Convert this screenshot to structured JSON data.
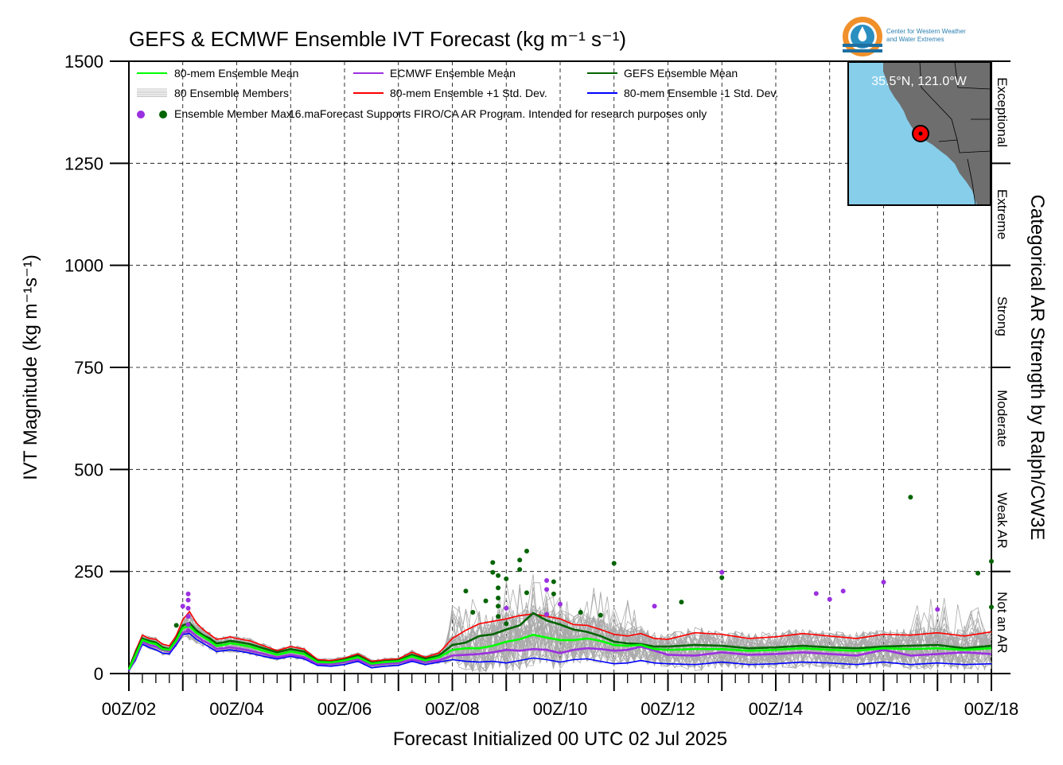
{
  "logo": {
    "line1": "Center for Western Weather",
    "line2": "and Water Extremes"
  },
  "inset": {
    "location": "35.5°N, 121.0°W",
    "ocean_color": "#87CEEB",
    "land_color": "#6E6E6E",
    "point_color": "#FF0000"
  },
  "colors": {
    "ens_mean": "#00FF00",
    "members": "#AAAAAA",
    "ecmwf_mean": "#9B30E0",
    "plus_std": "#FF0000",
    "gefs_mean": "#006400",
    "minus_std": "#0000FF"
  },
  "chart_data": {
    "type": "line",
    "title": "GEFS & ECMWF Ensemble IVT Forecast (kg m⁻¹ s⁻¹)",
    "xlabel": "Forecast Initialized 00 UTC 02 Jul 2025",
    "ylabel": "IVT Magnitude (kg m⁻¹s⁻¹)",
    "right_label": "Categorical AR Strength by Ralph/CW3E",
    "ylim": [
      0,
      1500
    ],
    "yticks": [
      0,
      250,
      500,
      750,
      1000,
      1250,
      1500
    ],
    "xlim": [
      "2025-07-02 00Z",
      "2025-07-18 00Z"
    ],
    "xtick_labels": [
      "00Z/02",
      "00Z/04",
      "00Z/06",
      "00Z/08",
      "00Z/10",
      "00Z/12",
      "00Z/14",
      "00Z/16",
      "00Z/18"
    ],
    "grid": true,
    "legend_placement": "top-left",
    "legend": [
      {
        "label": "80-mem Ensemble Mean",
        "color": "#00FF00"
      },
      {
        "label": "ECMWF Ensemble Mean",
        "color": "#9B30E0"
      },
      {
        "label": "GEFS Ensemble Mean",
        "color": "#006400"
      },
      {
        "label": "80 Ensemble Members",
        "color": "#AAAAAA"
      },
      {
        "label": "80-mem Ensemble +1 Std. Dev.",
        "color": "#FF0000"
      },
      {
        "label": "80-mem Ensemble -1 Std. Dev.",
        "color": "#0000FF"
      }
    ],
    "legend_dots_label": "Ensemble Member Max",
    "note": "16.maForecast Supports FIRO/CA AR Program. Intended for research purposes only",
    "categories": [
      {
        "label": "Not an AR",
        "from": 0,
        "to": 250
      },
      {
        "label": "Weak AR",
        "from": 250,
        "to": 500
      },
      {
        "label": "Moderate",
        "from": 500,
        "to": 750
      },
      {
        "label": "Strong",
        "from": 750,
        "to": 1000
      },
      {
        "label": "Extreme",
        "from": 1000,
        "to": 1250
      },
      {
        "label": "Exceptional",
        "from": 1250,
        "to": 1500
      }
    ],
    "x_units": "forecast day offset from 00Z/02",
    "series": [
      {
        "name": "80-mem Ensemble Mean",
        "color": "#00FF00",
        "x": [
          0,
          0.125,
          0.25,
          0.375,
          0.5,
          0.625,
          0.75,
          0.875,
          1.0,
          1.125,
          1.25,
          1.375,
          1.5,
          1.625,
          1.75,
          1.875,
          2.0,
          2.25,
          2.5,
          2.75,
          3.0,
          3.25,
          3.5,
          3.75,
          4.0,
          4.25,
          4.5,
          4.75,
          5.0,
          5.25,
          5.5,
          5.75,
          6.0,
          6.25,
          6.5,
          6.75,
          7.0,
          7.25,
          7.5,
          7.75,
          8.0,
          8.25,
          8.5,
          8.75,
          9.0,
          9.25,
          9.5,
          9.75,
          10.0,
          10.5,
          11.0,
          11.5,
          12.0,
          12.5,
          13.0,
          13.5,
          14.0,
          14.5,
          15.0,
          15.5,
          16.0,
          16.5,
          17.0,
          17.5,
          18.0
        ],
        "y": [
          10,
          45,
          82,
          76,
          72,
          60,
          58,
          80,
          112,
          116,
          100,
          90,
          80,
          68,
          70,
          74,
          72,
          66,
          56,
          46,
          54,
          48,
          28,
          27,
          32,
          40,
          24,
          28,
          30,
          42,
          32,
          40,
          58,
          62,
          62,
          68,
          78,
          84,
          95,
          88,
          82,
          82,
          86,
          80,
          70,
          68,
          70,
          60,
          58,
          60,
          60,
          56,
          58,
          62,
          58,
          56,
          62,
          60,
          62,
          58,
          62,
          58,
          64,
          66,
          72
        ]
      },
      {
        "name": "ECMWF Ensemble Mean",
        "color": "#9B30E0",
        "x": [
          0,
          0.125,
          0.25,
          0.375,
          0.5,
          0.625,
          0.75,
          0.875,
          1.0,
          1.125,
          1.25,
          1.375,
          1.5,
          1.625,
          1.75,
          1.875,
          2.0,
          2.25,
          2.5,
          2.75,
          3.0,
          3.25,
          3.5,
          3.75,
          4.0,
          4.25,
          4.5,
          4.75,
          5.0,
          5.25,
          5.5,
          5.75,
          6.0,
          6.25,
          6.5,
          6.75,
          7.0,
          7.25,
          7.5,
          7.75,
          8.0,
          8.25,
          8.5,
          8.75,
          9.0,
          9.25,
          9.5,
          9.75,
          10.0,
          10.5,
          11.0,
          11.5,
          12.0,
          12.5,
          13.0,
          13.5,
          14.0,
          14.5,
          15.0,
          15.5,
          16.0,
          16.5,
          17.0,
          17.5,
          18.0
        ],
        "y": [
          8,
          40,
          78,
          70,
          66,
          58,
          54,
          76,
          100,
          106,
          92,
          80,
          72,
          60,
          62,
          64,
          62,
          56,
          48,
          40,
          46,
          40,
          24,
          23,
          28,
          34,
          20,
          24,
          26,
          34,
          28,
          32,
          44,
          46,
          48,
          52,
          58,
          56,
          60,
          58,
          50,
          58,
          62,
          60,
          56,
          58,
          66,
          56,
          46,
          44,
          52,
          46,
          48,
          52,
          48,
          44,
          58,
          44,
          48,
          52,
          48,
          54,
          58,
          62,
          66
        ]
      },
      {
        "name": "GEFS Ensemble Mean",
        "color": "#006400",
        "x": [
          0,
          0.125,
          0.25,
          0.375,
          0.5,
          0.625,
          0.75,
          0.875,
          1.0,
          1.125,
          1.25,
          1.375,
          1.5,
          1.625,
          1.75,
          1.875,
          2.0,
          2.25,
          2.5,
          2.75,
          3.0,
          3.25,
          3.5,
          3.75,
          4.0,
          4.25,
          4.5,
          4.75,
          5.0,
          5.25,
          5.5,
          5.75,
          6.0,
          6.25,
          6.5,
          6.75,
          7.0,
          7.25,
          7.5,
          7.75,
          8.0,
          8.25,
          8.5,
          8.75,
          9.0,
          9.25,
          9.5,
          9.75,
          10.0,
          10.5,
          11.0,
          11.5,
          12.0,
          12.5,
          13.0,
          13.5,
          14.0,
          14.5,
          15.0,
          15.5,
          16.0,
          16.5,
          17.0,
          17.5,
          18.0
        ],
        "y": [
          12,
          50,
          86,
          80,
          76,
          64,
          60,
          84,
          118,
          124,
          106,
          94,
          86,
          74,
          76,
          80,
          78,
          72,
          62,
          52,
          60,
          54,
          30,
          28,
          34,
          44,
          26,
          30,
          32,
          46,
          36,
          44,
          70,
          76,
          92,
          96,
          108,
          118,
          148,
          130,
          120,
          108,
          102,
          92,
          78,
          74,
          72,
          66,
          66,
          70,
          68,
          62,
          64,
          68,
          64,
          62,
          66,
          68,
          70,
          62,
          68,
          60,
          72,
          68,
          80
        ]
      },
      {
        "name": "80-mem Ensemble +1 Std. Dev.",
        "color": "#FF0000",
        "x": [
          0,
          0.125,
          0.25,
          0.375,
          0.5,
          0.625,
          0.75,
          0.875,
          1.0,
          1.125,
          1.25,
          1.375,
          1.5,
          1.625,
          1.75,
          1.875,
          2.0,
          2.25,
          2.5,
          2.75,
          3.0,
          3.25,
          3.5,
          3.75,
          4.0,
          4.25,
          4.5,
          4.75,
          5.0,
          5.25,
          5.5,
          5.75,
          6.0,
          6.25,
          6.5,
          6.75,
          7.0,
          7.25,
          7.5,
          7.75,
          8.0,
          8.25,
          8.5,
          8.75,
          9.0,
          9.25,
          9.5,
          9.75,
          10.0,
          10.5,
          11.0,
          11.5,
          12.0,
          12.5,
          13.0,
          13.5,
          14.0,
          14.5,
          15.0,
          15.5,
          16.0,
          16.5,
          17.0,
          17.5,
          18.0
        ],
        "y": [
          14,
          56,
          94,
          86,
          84,
          72,
          68,
          92,
          132,
          152,
          124,
          108,
          96,
          84,
          86,
          90,
          86,
          80,
          68,
          56,
          66,
          60,
          34,
          32,
          38,
          48,
          30,
          34,
          36,
          52,
          40,
          50,
          86,
          106,
          122,
          128,
          134,
          142,
          146,
          140,
          134,
          120,
          118,
          108,
          96,
          92,
          98,
          86,
          84,
          100,
          96,
          86,
          90,
          98,
          92,
          86,
          96,
          94,
          100,
          92,
          102,
          96,
          108,
          116,
          138
        ]
      },
      {
        "name": "80-mem Ensemble -1 Std. Dev.",
        "color": "#0000FF",
        "x": [
          0,
          0.125,
          0.25,
          0.375,
          0.5,
          0.625,
          0.75,
          0.875,
          1.0,
          1.125,
          1.25,
          1.375,
          1.5,
          1.625,
          1.75,
          1.875,
          2.0,
          2.25,
          2.5,
          2.75,
          3.0,
          3.25,
          3.5,
          3.75,
          4.0,
          4.25,
          4.5,
          4.75,
          5.0,
          5.25,
          5.5,
          5.75,
          6.0,
          6.25,
          6.5,
          6.75,
          7.0,
          7.25,
          7.5,
          7.75,
          8.0,
          8.25,
          8.5,
          8.75,
          9.0,
          9.25,
          9.5,
          9.75,
          10.0,
          10.5,
          11.0,
          11.5,
          12.0,
          12.5,
          13.0,
          13.5,
          14.0,
          14.5,
          15.0,
          15.5,
          16.0,
          16.5,
          17.0,
          17.5,
          18.0
        ],
        "y": [
          6,
          34,
          72,
          64,
          58,
          50,
          48,
          70,
          96,
          98,
          84,
          74,
          64,
          54,
          56,
          58,
          56,
          50,
          42,
          36,
          42,
          36,
          20,
          18,
          22,
          30,
          14,
          18,
          20,
          30,
          22,
          28,
          34,
          30,
          28,
          30,
          26,
          32,
          38,
          34,
          28,
          34,
          36,
          30,
          24,
          26,
          32,
          26,
          24,
          22,
          28,
          22,
          24,
          28,
          26,
          22,
          28,
          22,
          26,
          22,
          24,
          22,
          28,
          24,
          26
        ]
      }
    ],
    "member_max_points": [
      {
        "x": 0.88,
        "y": 118,
        "model": "GEFS"
      },
      {
        "x": 1.0,
        "y": 165,
        "model": "ECMWF"
      },
      {
        "x": 1.1,
        "y": 195,
        "model": "ECMWF"
      },
      {
        "x": 1.1,
        "y": 180,
        "model": "ECMWF"
      },
      {
        "x": 1.1,
        "y": 160,
        "model": "ECMWF"
      },
      {
        "x": 1.1,
        "y": 140,
        "model": "ECMWF"
      },
      {
        "x": 1.1,
        "y": 120,
        "model": "ECMWF"
      },
      {
        "x": 1.1,
        "y": 105,
        "model": "ECMWF"
      },
      {
        "x": 6.25,
        "y": 202,
        "model": "GEFS"
      },
      {
        "x": 6.38,
        "y": 150,
        "model": "GEFS"
      },
      {
        "x": 6.62,
        "y": 178,
        "model": "GEFS"
      },
      {
        "x": 6.75,
        "y": 272,
        "model": "GEFS"
      },
      {
        "x": 6.75,
        "y": 248,
        "model": "GEFS"
      },
      {
        "x": 6.85,
        "y": 240,
        "model": "GEFS"
      },
      {
        "x": 6.85,
        "y": 210,
        "model": "GEFS"
      },
      {
        "x": 6.85,
        "y": 185,
        "model": "GEFS"
      },
      {
        "x": 6.85,
        "y": 165,
        "model": "GEFS"
      },
      {
        "x": 6.85,
        "y": 140,
        "model": "GEFS"
      },
      {
        "x": 7.0,
        "y": 232,
        "model": "GEFS"
      },
      {
        "x": 7.0,
        "y": 160,
        "model": "ECMWF"
      },
      {
        "x": 7.0,
        "y": 122,
        "model": "GEFS"
      },
      {
        "x": 7.25,
        "y": 278,
        "model": "GEFS"
      },
      {
        "x": 7.25,
        "y": 255,
        "model": "GEFS"
      },
      {
        "x": 7.38,
        "y": 300,
        "model": "GEFS"
      },
      {
        "x": 7.38,
        "y": 198,
        "model": "GEFS"
      },
      {
        "x": 7.75,
        "y": 228,
        "model": "ECMWF"
      },
      {
        "x": 7.75,
        "y": 206,
        "model": "ECMWF"
      },
      {
        "x": 7.75,
        "y": 145,
        "model": "ECMWF"
      },
      {
        "x": 7.88,
        "y": 225,
        "model": "GEFS"
      },
      {
        "x": 7.88,
        "y": 195,
        "model": "GEFS"
      },
      {
        "x": 8.0,
        "y": 170,
        "model": "ECMWF"
      },
      {
        "x": 8.38,
        "y": 150,
        "model": "GEFS"
      },
      {
        "x": 8.75,
        "y": 143,
        "model": "GEFS"
      },
      {
        "x": 9.0,
        "y": 270,
        "model": "GEFS"
      },
      {
        "x": 9.75,
        "y": 165,
        "model": "ECMWF"
      },
      {
        "x": 10.25,
        "y": 175,
        "model": "GEFS"
      },
      {
        "x": 11.0,
        "y": 248,
        "model": "ECMWF"
      },
      {
        "x": 11.0,
        "y": 235,
        "model": "GEFS"
      },
      {
        "x": 12.75,
        "y": 196,
        "model": "ECMWF"
      },
      {
        "x": 13.0,
        "y": 182,
        "model": "ECMWF"
      },
      {
        "x": 13.25,
        "y": 202,
        "model": "ECMWF"
      },
      {
        "x": 14.0,
        "y": 224,
        "model": "ECMWF"
      },
      {
        "x": 14.5,
        "y": 432,
        "model": "GEFS"
      },
      {
        "x": 15.0,
        "y": 157,
        "model": "ECMWF"
      },
      {
        "x": 15.75,
        "y": 246,
        "model": "GEFS"
      },
      {
        "x": 16.0,
        "y": 275,
        "model": "GEFS"
      },
      {
        "x": 16.0,
        "y": 163,
        "model": "GEFS"
      }
    ]
  }
}
